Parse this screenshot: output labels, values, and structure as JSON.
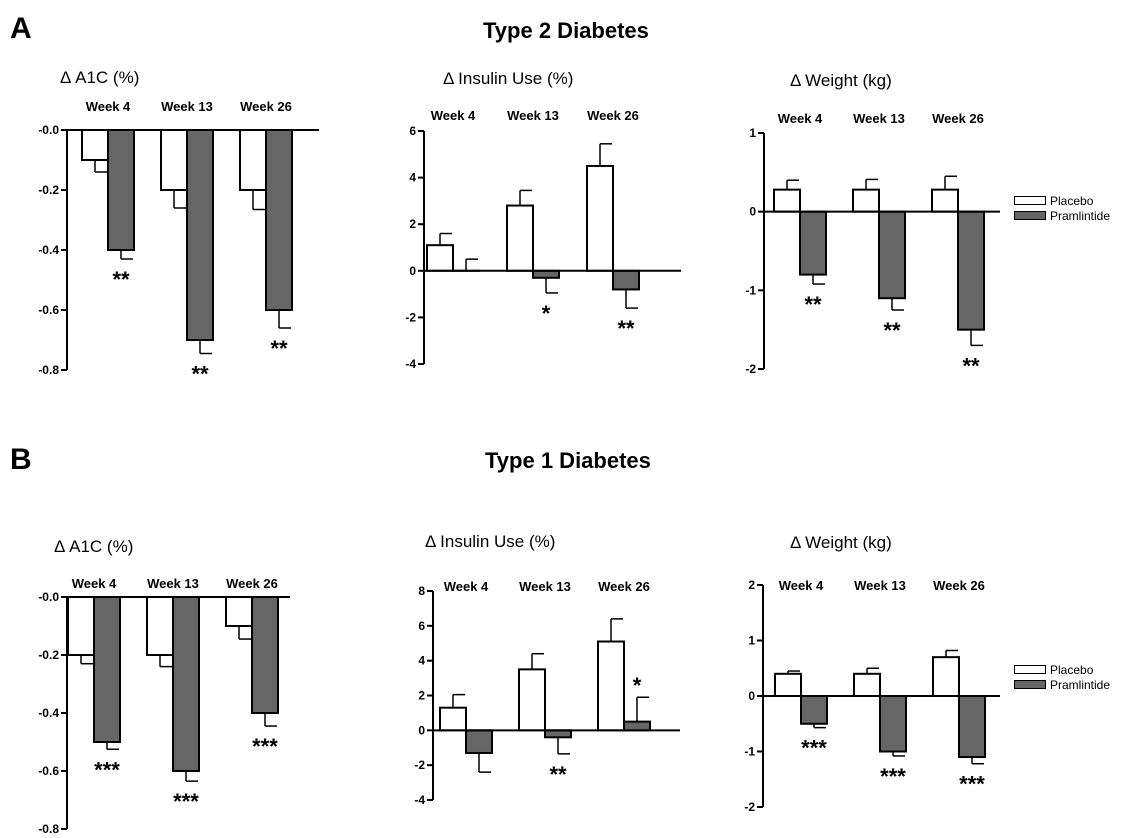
{
  "rows": [
    {
      "letter": "A",
      "title": "Type 2 Diabetes"
    },
    {
      "letter": "B",
      "title": "Type 1  Diabetes"
    }
  ],
  "legend": {
    "items": [
      {
        "label": "Placebo",
        "color": "#ffffff"
      },
      {
        "label": "Pramlintide",
        "color": "#666666"
      }
    ]
  },
  "chart_data": [
    {
      "type": "bar",
      "row": "A",
      "title": "Δ A1C (%)",
      "categories": [
        "Week 4",
        "Week 13",
        "Week 26"
      ],
      "ylim": [
        -0.8,
        0.0
      ],
      "yticks": [
        -0.8,
        -0.6,
        -0.4,
        -0.2,
        0.0
      ],
      "ytick_labels": [
        "-0.8",
        "-0.6",
        "-0.4",
        "-0.2",
        "-0.0"
      ],
      "series": [
        {
          "name": "Placebo",
          "values": [
            -0.1,
            -0.2,
            -0.2
          ],
          "errors": [
            0.04,
            0.06,
            0.065
          ]
        },
        {
          "name": "Pramlintide",
          "values": [
            -0.4,
            -0.7,
            -0.6
          ],
          "errors": [
            0.03,
            0.045,
            0.06
          ]
        }
      ],
      "annotations": [
        "**",
        "**",
        "**"
      ]
    },
    {
      "type": "bar",
      "row": "A",
      "title": "Δ Insulin Use (%)",
      "categories": [
        "Week 4",
        "Week 13",
        "Week 26"
      ],
      "ylim": [
        -4,
        6
      ],
      "yticks": [
        -4,
        -2,
        0,
        2,
        4,
        6
      ],
      "ytick_labels": [
        "-4",
        "-2",
        "0",
        "2",
        "4",
        "6"
      ],
      "series": [
        {
          "name": "Placebo",
          "values": [
            1.1,
            2.8,
            4.5
          ],
          "errors": [
            0.5,
            0.65,
            0.95
          ]
        },
        {
          "name": "Pramlintide",
          "values": [
            0.0,
            -0.3,
            -0.8
          ],
          "errors": [
            0.5,
            0.65,
            0.8
          ]
        }
      ],
      "annotations": [
        "",
        "*",
        "**"
      ]
    },
    {
      "type": "bar",
      "row": "A",
      "title": "Δ Weight (kg)",
      "categories": [
        "Week 4",
        "Week 13",
        "Week 26"
      ],
      "ylim": [
        -2,
        1
      ],
      "yticks": [
        -2,
        -1,
        0,
        1
      ],
      "ytick_labels": [
        "-2",
        "-1",
        "0",
        "1"
      ],
      "series": [
        {
          "name": "Placebo",
          "values": [
            0.28,
            0.28,
            0.28
          ],
          "errors": [
            0.12,
            0.13,
            0.17
          ]
        },
        {
          "name": "Pramlintide",
          "values": [
            -0.8,
            -1.1,
            -1.5
          ],
          "errors": [
            0.12,
            0.15,
            0.2
          ]
        }
      ],
      "annotations": [
        "**",
        "**",
        "**"
      ]
    },
    {
      "type": "bar",
      "row": "B",
      "title": "Δ A1C (%)",
      "categories": [
        "Week 4",
        "Week 13",
        "Week 26"
      ],
      "ylim": [
        -0.8,
        0.0
      ],
      "yticks": [
        -0.8,
        -0.6,
        -0.4,
        -0.2,
        0.0
      ],
      "ytick_labels": [
        "-0.8",
        "-0.6",
        "-0.4",
        "-0.2",
        "-0.0"
      ],
      "series": [
        {
          "name": "Placebo",
          "values": [
            -0.2,
            -0.2,
            -0.1
          ],
          "errors": [
            0.03,
            0.04,
            0.045
          ]
        },
        {
          "name": "Pramlintide",
          "values": [
            -0.5,
            -0.6,
            -0.4
          ],
          "errors": [
            0.025,
            0.035,
            0.045
          ]
        }
      ],
      "annotations": [
        "***",
        "***",
        "***"
      ]
    },
    {
      "type": "bar",
      "row": "B",
      "title": "Δ Insulin Use (%)",
      "categories": [
        "Week 4",
        "Week 13",
        "Week 26"
      ],
      "ylim": [
        -4,
        8
      ],
      "yticks": [
        -4,
        -2,
        0,
        2,
        4,
        6,
        8
      ],
      "ytick_labels": [
        "-4",
        "-2",
        "0",
        "2",
        "4",
        "6",
        "8"
      ],
      "series": [
        {
          "name": "Placebo",
          "values": [
            1.3,
            3.5,
            5.1
          ],
          "errors": [
            0.75,
            0.9,
            1.3
          ]
        },
        {
          "name": "Pramlintide",
          "values": [
            -1.3,
            -0.4,
            0.5
          ],
          "errors": [
            1.1,
            0.95,
            1.4
          ]
        }
      ],
      "annotations": [
        "",
        "**",
        "*"
      ]
    },
    {
      "type": "bar",
      "row": "B",
      "title": "Δ Weight (kg)",
      "categories": [
        "Week 4",
        "Week 13",
        "Week 26"
      ],
      "ylim": [
        -2,
        2
      ],
      "yticks": [
        -2,
        -1,
        0,
        1,
        2
      ],
      "ytick_labels": [
        "-2",
        "-1",
        "0",
        "1",
        "2"
      ],
      "series": [
        {
          "name": "Placebo",
          "values": [
            0.4,
            0.4,
            0.7
          ],
          "errors": [
            0.05,
            0.1,
            0.12
          ]
        },
        {
          "name": "Pramlintide",
          "values": [
            -0.5,
            -1.0,
            -1.1
          ],
          "errors": [
            0.07,
            0.08,
            0.12
          ]
        }
      ],
      "annotations": [
        "***",
        "***",
        "***"
      ]
    }
  ]
}
